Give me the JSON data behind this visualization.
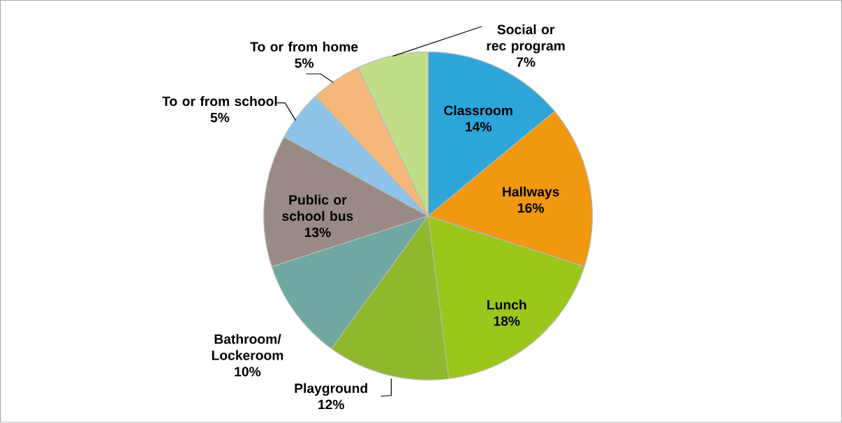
{
  "chart_data": {
    "type": "pie",
    "categories": [
      "Classroom",
      "Hallways",
      "Lunch",
      "Playground",
      "Bathroom/ Lockeroom",
      "Public or school bus",
      "To or from school",
      "To or from home",
      "Social or rec program"
    ],
    "values": [
      14,
      16,
      18,
      12,
      10,
      13,
      5,
      5,
      7
    ],
    "value_labels": [
      "14%",
      "16%",
      "18%",
      "12%",
      "10%",
      "13%",
      "5%",
      "5%",
      "7%"
    ],
    "colors": [
      "#2ea5d9",
      "#f0980f",
      "#9cc71a",
      "#8fb82c",
      "#6fa8a0",
      "#9a8a86",
      "#8dc3e8",
      "#f5b87a",
      "#c2dd88"
    ]
  }
}
